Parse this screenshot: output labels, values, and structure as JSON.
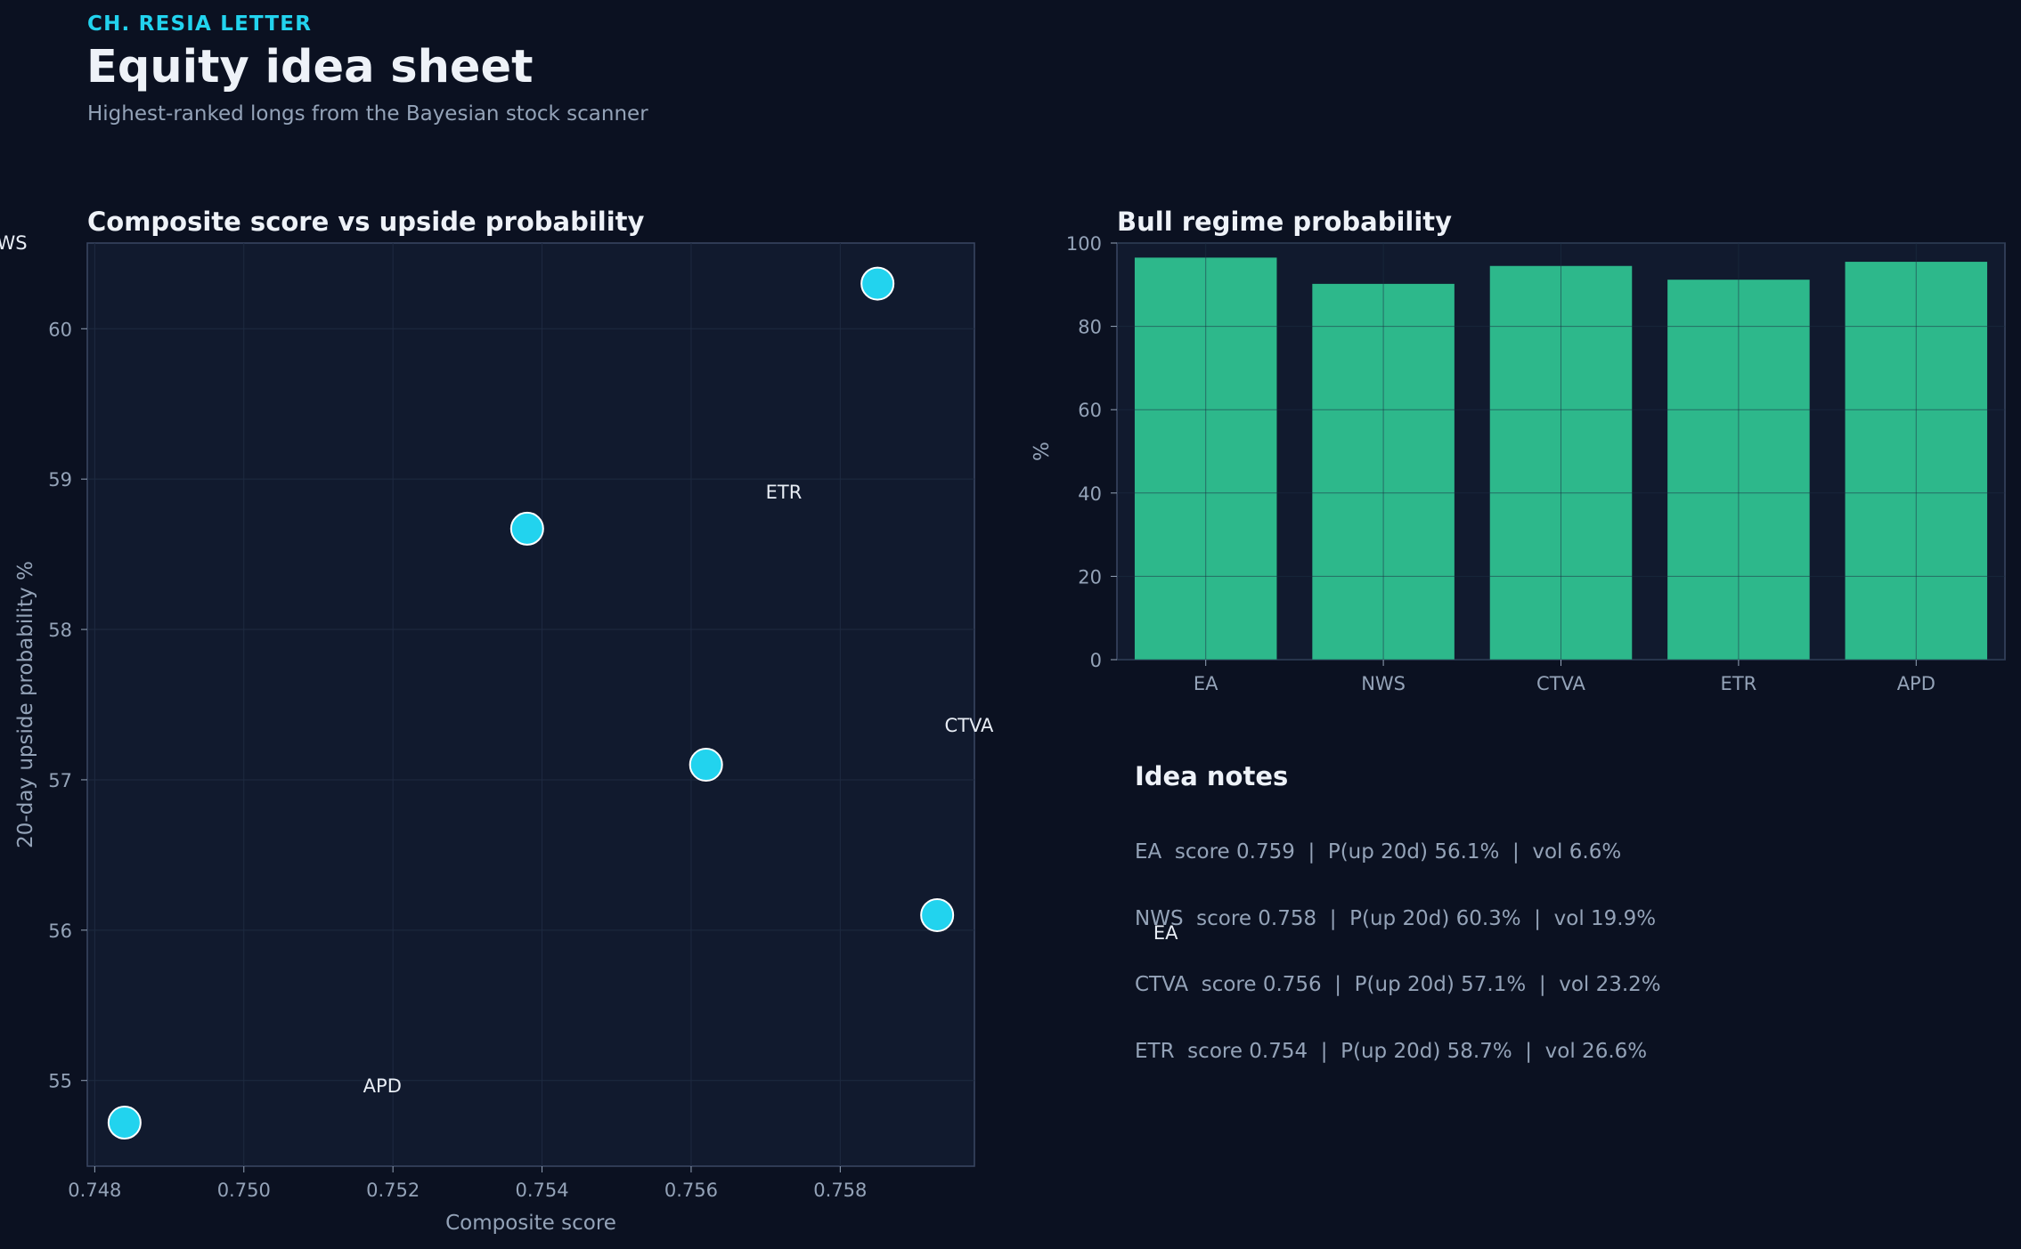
{
  "header": {
    "kicker": "CH. RESIA LETTER",
    "title": "Equity idea sheet",
    "subtitle": "Highest-ranked longs from the Bayesian stock scanner"
  },
  "colors": {
    "background": "#0b1121",
    "panel": "#111a2e",
    "accent": "#22d3ee",
    "bar": "#2db88b",
    "text": "#eef2f8",
    "muted": "#94a3b8",
    "grid": "#1e2a40"
  },
  "chart_data": [
    {
      "type": "scatter",
      "title": "Composite score vs upside probability",
      "xlabel": "Composite score",
      "ylabel": "20-day upside probability %",
      "xlim": [
        0.7479,
        0.7598
      ],
      "ylim": [
        54.43,
        60.57
      ],
      "xticks": [
        0.748,
        0.75,
        0.752,
        0.754,
        0.756,
        0.758
      ],
      "xtick_labels": [
        "0.748",
        "0.750",
        "0.752",
        "0.754",
        "0.756",
        "0.758"
      ],
      "yticks": [
        55,
        56,
        57,
        58,
        59,
        60
      ],
      "ytick_labels": [
        "55",
        "56",
        "57",
        "58",
        "59",
        "60"
      ],
      "grid": true,
      "points": [
        {
          "x": 0.7585,
          "y": 60.3
        },
        {
          "x": 0.7538,
          "y": 58.67
        },
        {
          "x": 0.7562,
          "y": 57.1
        },
        {
          "x": 0.7593,
          "y": 56.1
        },
        {
          "x": 0.7484,
          "y": 54.72
        }
      ],
      "annotations": [
        {
          "label": "NWS",
          "x": 0.7465,
          "y": 60.53
        },
        {
          "label": "ETR",
          "x": 0.757,
          "y": 58.87
        },
        {
          "label": "CTVA",
          "x": 0.7594,
          "y": 57.32
        },
        {
          "label": "EA",
          "x": 0.7622,
          "y": 55.94
        },
        {
          "label": "APD",
          "x": 0.7516,
          "y": 54.92
        }
      ]
    },
    {
      "type": "bar",
      "title": "Bull regime probability",
      "ylabel": "%",
      "categories": [
        "EA",
        "NWS",
        "CTVA",
        "ETR",
        "APD"
      ],
      "values": [
        96.5,
        90.2,
        94.5,
        91.2,
        95.5
      ],
      "ylim": [
        0,
        100
      ],
      "yticks": [
        0,
        20,
        40,
        60,
        80,
        100
      ],
      "ytick_labels": [
        "0",
        "20",
        "40",
        "60",
        "80",
        "100"
      ],
      "grid": true
    }
  ],
  "notes": {
    "heading": "Idea notes",
    "items": [
      "EA  score 0.759  |  P(up 20d) 56.1%  |  vol 6.6%",
      "NWS  score 0.758  |  P(up 20d) 60.3%  |  vol 19.9%",
      "CTVA  score 0.756  |  P(up 20d) 57.1%  |  vol 23.2%",
      "ETR  score 0.754  |  P(up 20d) 58.7%  |  vol 26.6%"
    ]
  }
}
